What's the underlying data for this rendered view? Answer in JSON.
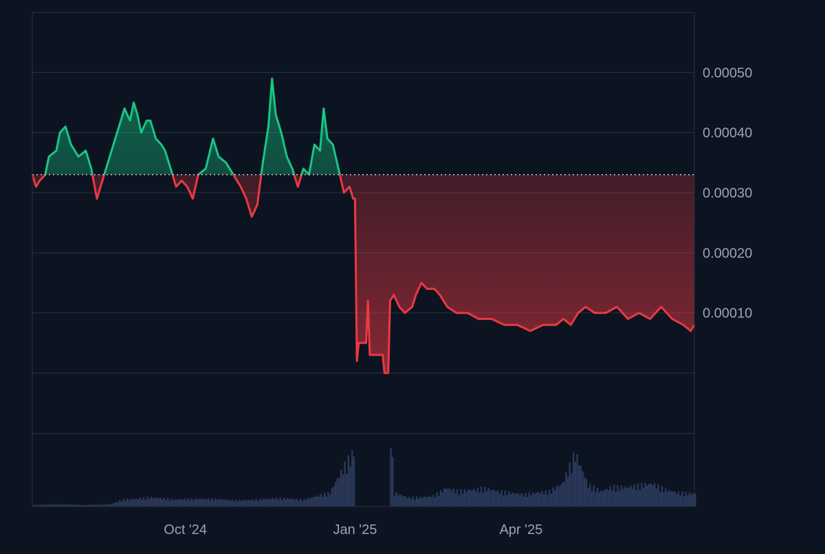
{
  "colors": {
    "background": "#0d1421",
    "grid": "#2a3140",
    "axis_text": "#9aa3b2",
    "up": "#16c784",
    "down": "#ea3943",
    "baseline": "#c8ccd4",
    "volume": "#2b3a5c"
  },
  "chart_data": {
    "type": "line",
    "ylim": [
      0,
      0.0006
    ],
    "baseline": 0.00033,
    "y_ticks": [
      {
        "value": 0.0001,
        "label": "0.00010"
      },
      {
        "value": 0.0002,
        "label": "0.00020"
      },
      {
        "value": 0.0003,
        "label": "0.00030"
      },
      {
        "value": 0.0004,
        "label": "0.00040"
      },
      {
        "value": 0.0005,
        "label": "0.00050"
      }
    ],
    "x_ticks": [
      {
        "date": "2024-10-01",
        "label": "Oct '24"
      },
      {
        "date": "2025-01-01",
        "label": "Jan '25"
      },
      {
        "date": "2025-04-01",
        "label": "Apr '25"
      }
    ],
    "price_series": [
      [
        "2024-07-10",
        0.00033
      ],
      [
        "2024-07-12",
        0.00031
      ],
      [
        "2024-07-14",
        0.00032
      ],
      [
        "2024-07-17",
        0.00033
      ],
      [
        "2024-07-19",
        0.00036
      ],
      [
        "2024-07-23",
        0.00037
      ],
      [
        "2024-07-25",
        0.0004
      ],
      [
        "2024-07-28",
        0.00041
      ],
      [
        "2024-07-31",
        0.00038
      ],
      [
        "2024-08-04",
        0.00036
      ],
      [
        "2024-08-08",
        0.00037
      ],
      [
        "2024-08-11",
        0.00034
      ],
      [
        "2024-08-14",
        0.00029
      ],
      [
        "2024-08-18",
        0.00033
      ],
      [
        "2024-08-23",
        0.00038
      ],
      [
        "2024-08-27",
        0.00042
      ],
      [
        "2024-08-29",
        0.00044
      ],
      [
        "2024-09-01",
        0.00042
      ],
      [
        "2024-09-03",
        0.00045
      ],
      [
        "2024-09-05",
        0.00043
      ],
      [
        "2024-09-07",
        0.0004
      ],
      [
        "2024-09-10",
        0.00042
      ],
      [
        "2024-09-12",
        0.00042
      ],
      [
        "2024-09-15",
        0.00039
      ],
      [
        "2024-09-18",
        0.00038
      ],
      [
        "2024-09-20",
        0.00037
      ],
      [
        "2024-09-23",
        0.00034
      ],
      [
        "2024-09-26",
        0.00031
      ],
      [
        "2024-09-29",
        0.00032
      ],
      [
        "2024-10-02",
        0.00031
      ],
      [
        "2024-10-05",
        0.00029
      ],
      [
        "2024-10-08",
        0.00033
      ],
      [
        "2024-10-12",
        0.00034
      ],
      [
        "2024-10-16",
        0.00039
      ],
      [
        "2024-10-19",
        0.00036
      ],
      [
        "2024-10-23",
        0.00035
      ],
      [
        "2024-10-27",
        0.00033
      ],
      [
        "2024-10-31",
        0.00031
      ],
      [
        "2024-11-03",
        0.00029
      ],
      [
        "2024-11-06",
        0.00026
      ],
      [
        "2024-11-09",
        0.00028
      ],
      [
        "2024-11-12",
        0.00035
      ],
      [
        "2024-11-15",
        0.00041
      ],
      [
        "2024-11-17",
        0.00049
      ],
      [
        "2024-11-19",
        0.00043
      ],
      [
        "2024-11-22",
        0.0004
      ],
      [
        "2024-11-25",
        0.00036
      ],
      [
        "2024-11-28",
        0.00034
      ],
      [
        "2024-12-01",
        0.00031
      ],
      [
        "2024-12-04",
        0.00034
      ],
      [
        "2024-12-07",
        0.00033
      ],
      [
        "2024-12-10",
        0.00038
      ],
      [
        "2024-12-13",
        0.00037
      ],
      [
        "2024-12-15",
        0.00044
      ],
      [
        "2024-12-17",
        0.00039
      ],
      [
        "2024-12-20",
        0.00038
      ],
      [
        "2024-12-23",
        0.00034
      ],
      [
        "2024-12-26",
        0.0003
      ],
      [
        "2024-12-29",
        0.00031
      ],
      [
        "2024-12-31",
        0.00029
      ],
      [
        "2025-01-01",
        0.00029
      ],
      [
        "2025-01-02",
        2e-05
      ],
      [
        "2025-01-03",
        5e-05
      ],
      [
        "2025-01-07",
        5e-05
      ],
      [
        "2025-01-08",
        0.00012
      ],
      [
        "2025-01-09",
        3e-05
      ],
      [
        "2025-01-16",
        3e-05
      ],
      [
        "2025-01-17",
        0.0
      ],
      [
        "2025-01-19",
        0.0
      ],
      [
        "2025-01-20",
        0.00012
      ],
      [
        "2025-01-22",
        0.00013
      ],
      [
        "2025-01-25",
        0.00011
      ],
      [
        "2025-01-28",
        0.0001
      ],
      [
        "2025-02-01",
        0.00011
      ],
      [
        "2025-02-03",
        0.00013
      ],
      [
        "2025-02-06",
        0.00015
      ],
      [
        "2025-02-09",
        0.00014
      ],
      [
        "2025-02-13",
        0.00014
      ],
      [
        "2025-02-16",
        0.00013
      ],
      [
        "2025-02-20",
        0.00011
      ],
      [
        "2025-02-25",
        0.0001
      ],
      [
        "2025-03-03",
        0.0001
      ],
      [
        "2025-03-09",
        9e-05
      ],
      [
        "2025-03-16",
        9e-05
      ],
      [
        "2025-03-23",
        8e-05
      ],
      [
        "2025-03-30",
        8e-05
      ],
      [
        "2025-04-06",
        7e-05
      ],
      [
        "2025-04-13",
        8e-05
      ],
      [
        "2025-04-20",
        8e-05
      ],
      [
        "2025-04-24",
        9e-05
      ],
      [
        "2025-04-28",
        8e-05
      ],
      [
        "2025-05-02",
        0.0001
      ],
      [
        "2025-05-06",
        0.00011
      ],
      [
        "2025-05-11",
        0.0001
      ],
      [
        "2025-05-17",
        0.0001
      ],
      [
        "2025-05-23",
        0.00011
      ],
      [
        "2025-05-29",
        9e-05
      ],
      [
        "2025-06-04",
        0.0001
      ],
      [
        "2025-06-10",
        9e-05
      ],
      [
        "2025-06-16",
        0.00011
      ],
      [
        "2025-06-22",
        9e-05
      ],
      [
        "2025-06-28",
        8e-05
      ],
      [
        "2025-07-02",
        7e-05
      ],
      [
        "2025-07-04",
        8e-05
      ]
    ],
    "volume_series": [
      [
        "2024-07-10",
        2
      ],
      [
        "2024-07-24",
        3
      ],
      [
        "2024-08-07",
        2
      ],
      [
        "2024-08-21",
        3
      ],
      [
        "2024-08-28",
        9
      ],
      [
        "2024-09-04",
        10
      ],
      [
        "2024-09-11",
        12
      ],
      [
        "2024-09-18",
        11
      ],
      [
        "2024-09-25",
        9
      ],
      [
        "2024-10-02",
        10
      ],
      [
        "2024-10-09",
        10
      ],
      [
        "2024-10-16",
        10
      ],
      [
        "2024-10-23",
        9
      ],
      [
        "2024-10-30",
        8
      ],
      [
        "2024-11-06",
        9
      ],
      [
        "2024-11-13",
        10
      ],
      [
        "2024-11-20",
        11
      ],
      [
        "2024-11-27",
        10
      ],
      [
        "2024-12-04",
        9
      ],
      [
        "2024-12-11",
        14
      ],
      [
        "2024-12-18",
        18
      ],
      [
        "2024-12-25",
        50
      ],
      [
        "2024-12-31",
        72
      ],
      [
        "2025-01-01",
        0
      ],
      [
        "2025-01-19",
        0
      ],
      [
        "2025-01-20",
        100
      ],
      [
        "2025-01-22",
        18
      ],
      [
        "2025-01-29",
        12
      ],
      [
        "2025-02-05",
        12
      ],
      [
        "2025-02-12",
        14
      ],
      [
        "2025-02-19",
        24
      ],
      [
        "2025-02-26",
        20
      ],
      [
        "2025-03-05",
        22
      ],
      [
        "2025-03-12",
        24
      ],
      [
        "2025-03-19",
        20
      ],
      [
        "2025-03-26",
        18
      ],
      [
        "2025-04-02",
        16
      ],
      [
        "2025-04-09",
        18
      ],
      [
        "2025-04-16",
        20
      ],
      [
        "2025-04-23",
        30
      ],
      [
        "2025-04-30",
        70
      ],
      [
        "2025-05-07",
        28
      ],
      [
        "2025-05-14",
        20
      ],
      [
        "2025-05-21",
        26
      ],
      [
        "2025-05-28",
        25
      ],
      [
        "2025-06-04",
        28
      ],
      [
        "2025-06-11",
        30
      ],
      [
        "2025-06-18",
        22
      ],
      [
        "2025-06-25",
        18
      ],
      [
        "2025-07-04",
        17
      ]
    ],
    "volume_max": 100,
    "x_start": "2024-07-10",
    "x_end": "2025-07-04"
  }
}
